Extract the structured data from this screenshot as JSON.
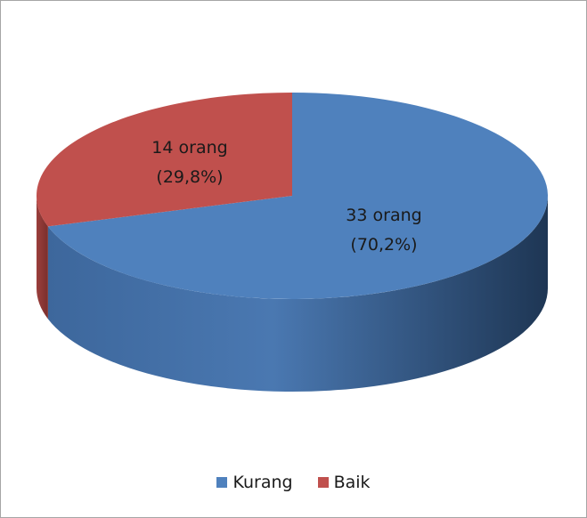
{
  "chart_data": {
    "type": "pie",
    "style": "3d",
    "title": "",
    "legend_position": "bottom",
    "slices": [
      {
        "name": "Kurang",
        "value": 33,
        "percent_label": "(70,2%)",
        "count_label": "33 orang",
        "color": "#4f81bd"
      },
      {
        "name": "Baik",
        "value": 14,
        "percent_label": "(29,8%)",
        "count_label": "14 orang",
        "color": "#c0504d"
      }
    ]
  },
  "colors": {
    "kurang_side": "#2c4d75",
    "baik_side": "#8c3836",
    "border": "#a6a6a6"
  }
}
